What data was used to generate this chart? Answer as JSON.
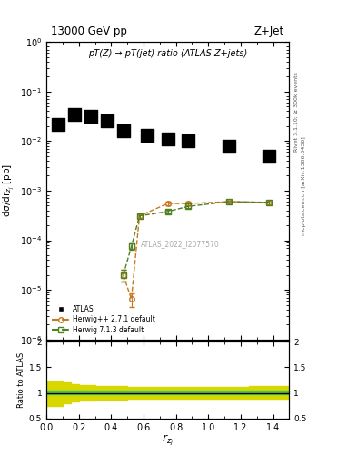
{
  "title_left": "13000 GeV pp",
  "title_right": "Z+Jet",
  "plot_title": "pT(Z) → pT(jet) ratio (ATLAS Z+jets)",
  "xlabel": "$r_{z_j}$",
  "ylabel_main": "dσ/dr$_{z_j}$ [pb]",
  "ylabel_ratio": "Ratio to ATLAS",
  "watermark": "ATLAS_2022_I2077570",
  "right_label1": "Rivet 3.1.10; ≥ 300k events",
  "right_label2": "mcplots.cern.ch [ar​Xiv:1306.3436]",
  "atlas_x": [
    0.075,
    0.175,
    0.275,
    0.375,
    0.475,
    0.625,
    0.75,
    0.875,
    1.125,
    1.375
  ],
  "atlas_y": [
    0.022,
    0.035,
    0.032,
    0.026,
    0.016,
    0.013,
    0.011,
    0.01,
    0.008,
    0.005
  ],
  "herwig1_x": [
    0.475,
    0.525,
    0.575,
    0.75,
    0.875,
    1.125,
    1.375
  ],
  "herwig1_y": [
    2e-05,
    6.5e-06,
    0.00031,
    0.00055,
    0.00055,
    0.0006,
    0.00058
  ],
  "herwig1_yerr": [
    5e-06,
    2e-06,
    3e-05,
    4e-05,
    4e-05,
    4e-05,
    4e-05
  ],
  "herwig1_color": "#c87820",
  "herwig1_label": "Herwig++ 2.7.1 default",
  "herwig2_x": [
    0.475,
    0.525,
    0.575,
    0.75,
    0.875,
    1.125,
    1.375
  ],
  "herwig2_y": [
    2e-05,
    7.5e-05,
    0.00031,
    0.00038,
    0.00048,
    0.0006,
    0.00058
  ],
  "herwig2_yerr": [
    5e-06,
    1e-05,
    3e-05,
    3e-05,
    3e-05,
    4e-05,
    4e-05
  ],
  "herwig2_color": "#508020",
  "herwig2_label": "Herwig 7.1.3 default",
  "ratio_xbins": [
    0.0,
    0.1,
    0.15,
    0.2,
    0.3,
    0.5,
    0.7,
    0.9,
    1.1,
    1.25,
    1.5
  ],
  "ratio_green_lo": [
    0.97,
    0.97,
    0.97,
    0.97,
    0.97,
    0.97,
    0.97,
    0.97,
    0.97,
    0.97
  ],
  "ratio_green_hi": [
    1.05,
    1.05,
    1.05,
    1.05,
    1.05,
    1.05,
    1.05,
    1.05,
    1.05,
    1.05
  ],
  "ratio_yellow_lo": [
    0.75,
    0.8,
    0.83,
    0.86,
    0.87,
    0.88,
    0.88,
    0.88,
    0.88,
    0.88
  ],
  "ratio_yellow_hi": [
    1.22,
    1.2,
    1.18,
    1.15,
    1.13,
    1.12,
    1.12,
    1.12,
    1.12,
    1.13
  ],
  "ylim_main": [
    1e-06,
    1.0
  ],
  "ylim_ratio": [
    0.5,
    2.0
  ],
  "xlim": [
    0.0,
    1.5
  ],
  "atlas_color": "#000000",
  "atlas_marker": "s",
  "atlas_markersize": 5,
  "green_color": "#50c050",
  "yellow_color": "#d8d800"
}
